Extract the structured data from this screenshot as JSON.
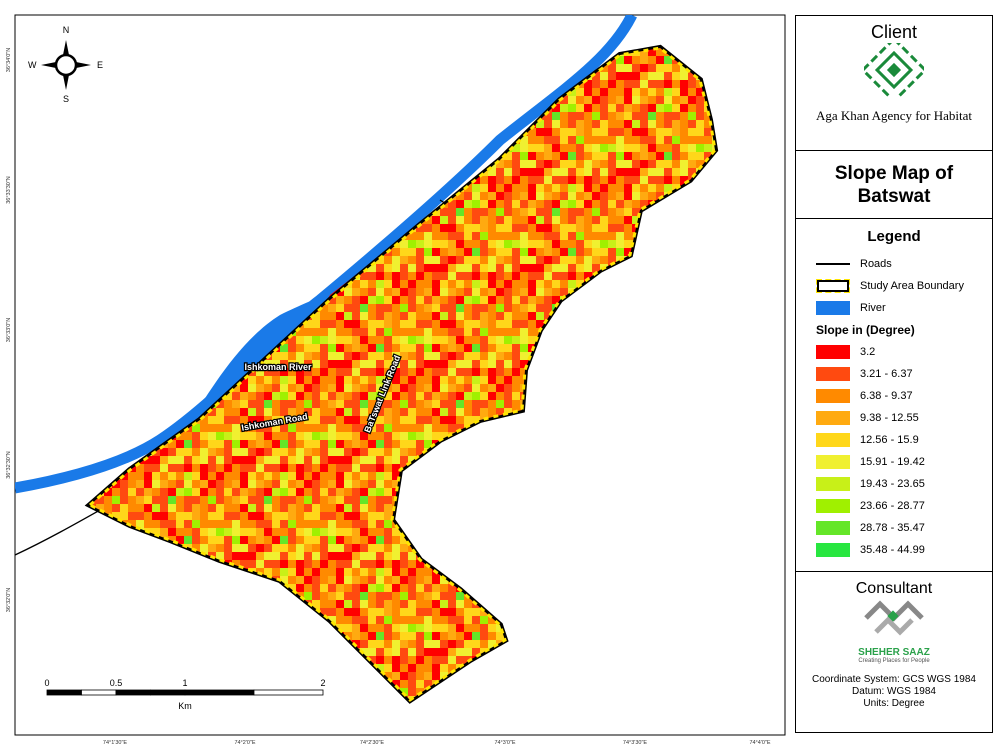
{
  "map": {
    "compass": {
      "n": "N",
      "s": "S",
      "e": "E",
      "w": "W"
    },
    "place_labels": [
      "Ishkoman River",
      "Ishkoman Road",
      "BaTswat Link Road"
    ],
    "latitude_labels": [
      "36°34'0\"N",
      "36°33'30\"N",
      "36°33'0\"N",
      "36°32'30\"N",
      "36°32'0\"N"
    ],
    "longitude_labels": [
      "74°1'30\"E",
      "74°2'0\"E",
      "74°2'30\"E",
      "74°3'0\"E",
      "74°3'30\"E",
      "74°4'0\"E"
    ],
    "scale_bar": {
      "ticks": [
        0,
        0.5,
        1,
        2
      ],
      "unit": "Km"
    }
  },
  "panel": {
    "client": "Client",
    "client_name": "Aga Khan Agency for Habitat",
    "title": "Slope Map of Batswat",
    "legend_title": "Legend",
    "legend_items": [
      "Roads",
      "Study Area Boundary",
      "River"
    ],
    "river_color": "#1a7ae8",
    "slope_title": "Slope in (Degree)",
    "slope_classes": [
      {
        "label": "3.2",
        "color": "#ff0000"
      },
      {
        "label": "3.21 - 6.37",
        "color": "#ff4a10"
      },
      {
        "label": "6.38 - 9.37",
        "color": "#ff8a00"
      },
      {
        "label": "9.38 - 12.55",
        "color": "#ffaa10"
      },
      {
        "label": "12.56 - 15.9",
        "color": "#ffd71a"
      },
      {
        "label": "15.91 - 19.42",
        "color": "#f0f030"
      },
      {
        "label": "19.43 - 23.65",
        "color": "#c8f018"
      },
      {
        "label": "23.66 - 28.77",
        "color": "#a0f000"
      },
      {
        "label": "28.78 - 35.47",
        "color": "#64e628"
      },
      {
        "label": "35.48 - 44.99",
        "color": "#28e640"
      }
    ],
    "consultant": "Consultant",
    "consultant_name": "SHEHER SAAZ",
    "consultant_tagline": "Creating Places for People",
    "footer": [
      "Coordinate System: GCS WGS 1984",
      "Datum: WGS 1984",
      "Units: Degree"
    ]
  }
}
